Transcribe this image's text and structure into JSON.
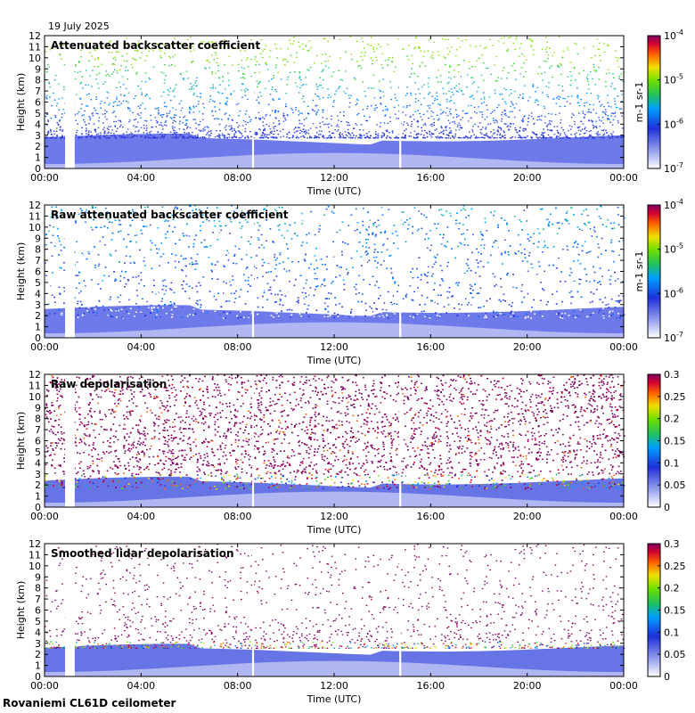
{
  "header": {
    "date": "19 July 2025"
  },
  "footer": {
    "instrument": "Rovaniemi CL61D ceilometer"
  },
  "chart_data": [
    {
      "type": "heatmap",
      "title": "Attenuated backscatter coefficient",
      "xlabel": "Time (UTC)",
      "ylabel": "Height (km)",
      "x_ticks": [
        "00:00",
        "04:00",
        "08:00",
        "12:00",
        "16:00",
        "20:00",
        "00:00"
      ],
      "xlim_hours": [
        0,
        24
      ],
      "y_ticks": [
        0,
        1,
        2,
        3,
        4,
        5,
        6,
        7,
        8,
        9,
        10,
        11,
        12
      ],
      "ylim_km": [
        0,
        12
      ],
      "colorbar": {
        "scale": "log",
        "ticks": [
          "10-4",
          "10-5",
          "10-6",
          "10-7"
        ],
        "label": "m-1 sr-1"
      },
      "data_gaps_hours": [
        [
          0.85,
          1.25
        ],
        [
          8.6,
          8.68
        ],
        [
          14.7,
          14.78
        ]
      ],
      "boundary_layer_top_km": 2.8,
      "variant": "sparse_backscatter"
    },
    {
      "type": "heatmap",
      "title": "Raw attenuated backscatter coefficient",
      "xlabel": "Time (UTC)",
      "ylabel": "Height (km)",
      "x_ticks": [
        "00:00",
        "04:00",
        "08:00",
        "12:00",
        "16:00",
        "20:00",
        "00:00"
      ],
      "xlim_hours": [
        0,
        24
      ],
      "y_ticks": [
        0,
        1,
        2,
        3,
        4,
        5,
        6,
        7,
        8,
        9,
        10,
        11,
        12
      ],
      "ylim_km": [
        0,
        12
      ],
      "colorbar": {
        "scale": "log",
        "ticks": [
          "10-4",
          "10-5",
          "10-6",
          "10-7"
        ],
        "label": "m-1 sr-1"
      },
      "data_gaps_hours": [
        [
          0.85,
          1.25
        ],
        [
          8.6,
          8.68
        ],
        [
          14.7,
          14.78
        ]
      ],
      "boundary_layer_top_km": 2.6,
      "variant": "dense_backscatter"
    },
    {
      "type": "heatmap",
      "title": "Raw depolarisation",
      "xlabel": "Time (UTC)",
      "ylabel": "Height (km)",
      "x_ticks": [
        "00:00",
        "04:00",
        "08:00",
        "12:00",
        "16:00",
        "20:00",
        "00:00"
      ],
      "xlim_hours": [
        0,
        24
      ],
      "y_ticks": [
        0,
        1,
        2,
        3,
        4,
        5,
        6,
        7,
        8,
        9,
        10,
        11,
        12
      ],
      "ylim_km": [
        0,
        12
      ],
      "colorbar": {
        "scale": "linear",
        "ticks": [
          "0.3",
          "0.25",
          "0.2",
          "0.15",
          "0.1",
          "0.05",
          "0"
        ]
      },
      "data_gaps_hours": [
        [
          0.85,
          1.25
        ],
        [
          8.6,
          8.68
        ],
        [
          14.7,
          14.78
        ]
      ],
      "boundary_layer_top_km": 2.4,
      "variant": "dense_depol"
    },
    {
      "type": "heatmap",
      "title": "Smoothed lidar depolarisation",
      "xlabel": "Time (UTC)",
      "ylabel": "Height (km)",
      "x_ticks": [
        "00:00",
        "04:00",
        "08:00",
        "12:00",
        "16:00",
        "20:00",
        "00:00"
      ],
      "xlim_hours": [
        0,
        24
      ],
      "y_ticks": [
        0,
        1,
        2,
        3,
        4,
        5,
        6,
        7,
        8,
        9,
        10,
        11,
        12
      ],
      "ylim_km": [
        0,
        12
      ],
      "colorbar": {
        "scale": "linear",
        "ticks": [
          "0.3",
          "0.25",
          "0.2",
          "0.15",
          "0.1",
          "0.05",
          "0"
        ]
      },
      "data_gaps_hours": [
        [
          0.85,
          1.25
        ],
        [
          8.6,
          8.68
        ],
        [
          14.7,
          14.78
        ]
      ],
      "boundary_layer_top_km": 2.6,
      "variant": "sparse_depol"
    }
  ]
}
